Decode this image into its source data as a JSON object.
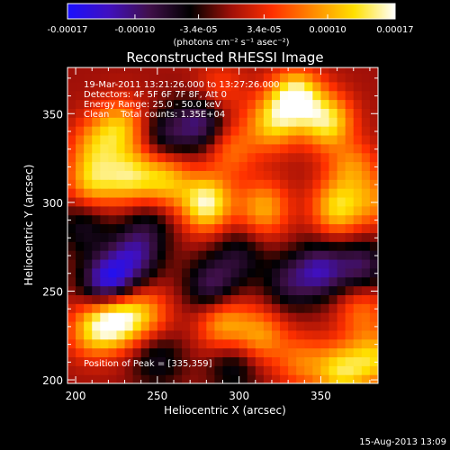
{
  "chart_data": {
    "type": "heatmap",
    "title": "Reconstructed RHESSI Image",
    "xlabel": "Heliocentric X (arcsec)",
    "ylabel": "Heliocentric Y (arcsec)",
    "xlim": [
      195,
      385
    ],
    "ylim": [
      198,
      376
    ],
    "x_ticks": [
      200,
      250,
      300,
      350
    ],
    "y_ticks": [
      200,
      250,
      300,
      350
    ],
    "colorbar": {
      "min": -0.00017,
      "max": 0.00017,
      "tick_values": [
        -0.00017,
        -0.0001,
        -3.4e-05,
        3.4e-05,
        0.0001,
        0.00017
      ],
      "tick_labels": [
        "-0.00017",
        "-0.00010",
        "-3.4e-05",
        "3.4e-05",
        "0.00010",
        "0.00017"
      ],
      "unit_label": "(photons cm⁻² s⁻¹ asec⁻²)",
      "colormap": [
        "#1a10ff",
        "#4010c0",
        "#40104a",
        "#000000",
        "#a01008",
        "#ff3000",
        "#ff8a00",
        "#ffe000",
        "#ffffff"
      ]
    },
    "annotations": [
      "19-Mar-2011 13:21:26.000 to 13:27:26.000",
      "Detectors: 4F 5F 6F 7F 8F, Att 0",
      "Energy Range: 25.0 - 50.0 keV",
      "Clean    Total counts: 1.35E+04"
    ],
    "peak_label": "Position of Peak = [335,359]",
    "peak": [
      335,
      359
    ],
    "sources": [
      {
        "x": 335,
        "y": 359,
        "value": 0.00017
      },
      {
        "x": 355,
        "y": 345,
        "value": 0.00014
      },
      {
        "x": 320,
        "y": 345,
        "value": 0.00011
      },
      {
        "x": 368,
        "y": 323,
        "value": 0.00011
      },
      {
        "x": 280,
        "y": 300,
        "value": 0.00016
      },
      {
        "x": 255,
        "y": 313,
        "value": 0.00011
      },
      {
        "x": 233,
        "y": 315,
        "value": 0.00012
      },
      {
        "x": 210,
        "y": 312,
        "value": 0.00011
      },
      {
        "x": 315,
        "y": 297,
        "value": 0.0001
      },
      {
        "x": 360,
        "y": 297,
        "value": 0.00012
      },
      {
        "x": 228,
        "y": 343,
        "value": 0.0001
      },
      {
        "x": 212,
        "y": 333,
        "value": 8e-05
      },
      {
        "x": 295,
        "y": 330,
        "value": 7e-05
      },
      {
        "x": 383,
        "y": 301,
        "value": 7e-05
      },
      {
        "x": 288,
        "y": 364,
        "value": 5e-05
      },
      {
        "x": 225,
        "y": 235,
        "value": 0.00016
      },
      {
        "x": 210,
        "y": 228,
        "value": 0.0001
      },
      {
        "x": 243,
        "y": 237,
        "value": 8e-05
      },
      {
        "x": 290,
        "y": 232,
        "value": 0.0001
      },
      {
        "x": 313,
        "y": 225,
        "value": 9e-05
      },
      {
        "x": 362,
        "y": 205,
        "value": 0.00012
      },
      {
        "x": 383,
        "y": 212,
        "value": 0.00011
      },
      {
        "x": 338,
        "y": 210,
        "value": 7e-05
      },
      {
        "x": 375,
        "y": 240,
        "value": 7e-05
      },
      {
        "x": 220,
        "y": 255,
        "value": -0.00016
      },
      {
        "x": 236,
        "y": 270,
        "value": -0.0001
      },
      {
        "x": 283,
        "y": 253,
        "value": -9e-05
      },
      {
        "x": 350,
        "y": 262,
        "value": -0.00011
      },
      {
        "x": 330,
        "y": 255,
        "value": -7e-05
      },
      {
        "x": 300,
        "y": 270,
        "value": -6e-05
      },
      {
        "x": 277,
        "y": 345,
        "value": -0.0001
      },
      {
        "x": 255,
        "y": 338,
        "value": -7e-05
      },
      {
        "x": 205,
        "y": 287,
        "value": -6e-05
      },
      {
        "x": 250,
        "y": 212,
        "value": -6e-05
      },
      {
        "x": 297,
        "y": 208,
        "value": -6e-05
      },
      {
        "x": 375,
        "y": 264,
        "value": -9e-05
      },
      {
        "x": 365,
        "y": 330,
        "value": -5e-05
      },
      {
        "x": 245,
        "y": 288,
        "value": -5e-05
      }
    ]
  },
  "footer": {
    "timestamp": "15-Aug-2013 13:09"
  }
}
